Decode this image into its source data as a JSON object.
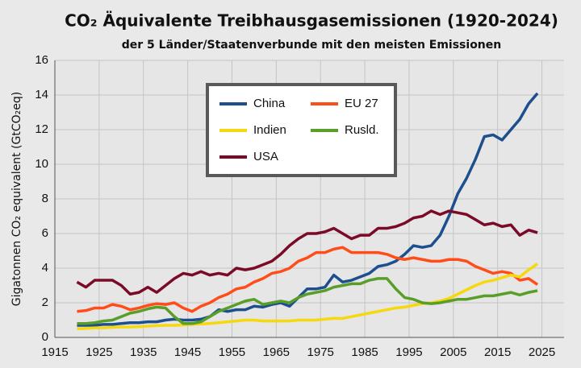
{
  "chart_data": {
    "type": "line",
    "title": "CO₂ Äquivalente Treibhausgasemissionen (1920-2024)",
    "subtitle": "der 5 Länder/Staatenverbunde mit den meisten Emissionen",
    "y_label": "Gigatonnen  CO₂ equivalent (GtCO₂eq)",
    "x": [
      1920,
      1922,
      1924,
      1926,
      1928,
      1930,
      1932,
      1934,
      1936,
      1938,
      1940,
      1942,
      1944,
      1946,
      1948,
      1950,
      1952,
      1954,
      1956,
      1958,
      1960,
      1962,
      1964,
      1966,
      1968,
      1970,
      1972,
      1974,
      1976,
      1978,
      1980,
      1982,
      1984,
      1986,
      1988,
      1990,
      1992,
      1994,
      1996,
      1998,
      2000,
      2002,
      2004,
      2006,
      2008,
      2010,
      2012,
      2014,
      2016,
      2018,
      2020,
      2022,
      2024
    ],
    "series": [
      {
        "name": "China",
        "color": "#1d4f8f",
        "values": [
          0.7,
          0.7,
          0.7,
          0.75,
          0.75,
          0.8,
          0.85,
          0.85,
          0.9,
          0.9,
          1.0,
          1.05,
          1.0,
          1.0,
          1.05,
          1.2,
          1.6,
          1.5,
          1.6,
          1.6,
          1.8,
          1.75,
          1.9,
          2.0,
          1.8,
          2.3,
          2.8,
          2.8,
          2.9,
          3.6,
          3.2,
          3.3,
          3.5,
          3.7,
          4.1,
          4.2,
          4.4,
          4.8,
          5.3,
          5.2,
          5.3,
          5.9,
          7.0,
          8.3,
          9.2,
          10.3,
          11.6,
          11.7,
          11.4,
          12.0,
          12.6,
          13.5,
          14.1
        ]
      },
      {
        "name": "EU 27",
        "color": "#ff4d1a",
        "values": [
          1.5,
          1.55,
          1.7,
          1.7,
          1.9,
          1.8,
          1.6,
          1.7,
          1.85,
          1.95,
          1.9,
          2.0,
          1.7,
          1.5,
          1.8,
          2.0,
          2.3,
          2.5,
          2.8,
          2.9,
          3.2,
          3.4,
          3.7,
          3.8,
          4.0,
          4.4,
          4.6,
          4.9,
          4.9,
          5.1,
          5.2,
          4.9,
          4.9,
          4.9,
          4.9,
          4.8,
          4.6,
          4.5,
          4.6,
          4.5,
          4.4,
          4.4,
          4.5,
          4.5,
          4.4,
          4.1,
          3.9,
          3.7,
          3.8,
          3.7,
          3.3,
          3.4,
          3.05
        ]
      },
      {
        "name": "Indien",
        "color": "#f5d80f",
        "values": [
          0.5,
          0.52,
          0.55,
          0.55,
          0.58,
          0.6,
          0.6,
          0.62,
          0.65,
          0.68,
          0.7,
          0.7,
          0.72,
          0.75,
          0.78,
          0.8,
          0.85,
          0.9,
          0.95,
          1.0,
          1.0,
          0.95,
          0.95,
          0.95,
          0.95,
          1.0,
          1.0,
          1.0,
          1.05,
          1.1,
          1.1,
          1.2,
          1.3,
          1.4,
          1.5,
          1.6,
          1.7,
          1.75,
          1.85,
          1.95,
          2.0,
          2.1,
          2.25,
          2.5,
          2.75,
          3.0,
          3.2,
          3.3,
          3.45,
          3.6,
          3.5,
          3.9,
          4.25
        ]
      },
      {
        "name": "Rusld.",
        "color": "#5a9e2a",
        "values": [
          0.8,
          0.8,
          0.85,
          0.95,
          1.0,
          1.2,
          1.4,
          1.5,
          1.65,
          1.75,
          1.7,
          1.2,
          0.8,
          0.8,
          0.9,
          1.2,
          1.5,
          1.7,
          1.9,
          2.1,
          2.2,
          1.9,
          2.0,
          2.1,
          2.0,
          2.3,
          2.5,
          2.6,
          2.7,
          2.9,
          3.0,
          3.1,
          3.1,
          3.3,
          3.4,
          3.4,
          2.8,
          2.3,
          2.2,
          2.0,
          1.95,
          2.0,
          2.1,
          2.2,
          2.2,
          2.3,
          2.4,
          2.4,
          2.5,
          2.6,
          2.45,
          2.6,
          2.7
        ]
      },
      {
        "name": "USA",
        "color": "#7a0a28",
        "values": [
          3.2,
          2.9,
          3.3,
          3.3,
          3.3,
          3.0,
          2.5,
          2.6,
          2.9,
          2.6,
          3.0,
          3.4,
          3.7,
          3.6,
          3.8,
          3.6,
          3.7,
          3.6,
          4.0,
          3.9,
          4.0,
          4.2,
          4.4,
          4.8,
          5.3,
          5.7,
          6.0,
          6.0,
          6.1,
          6.3,
          6.0,
          5.7,
          5.9,
          5.9,
          6.3,
          6.3,
          6.4,
          6.6,
          6.9,
          7.0,
          7.3,
          7.1,
          7.3,
          7.2,
          7.1,
          6.8,
          6.5,
          6.6,
          6.4,
          6.5,
          5.9,
          6.2,
          6.05
        ]
      }
    ],
    "xlim": [
      1915,
      2030
    ],
    "xticks": [
      1915,
      1925,
      1935,
      1945,
      1955,
      1965,
      1975,
      1985,
      1995,
      2005,
      2015,
      2025
    ],
    "ylim": [
      0,
      16
    ],
    "yticks": [
      0,
      2,
      4,
      6,
      8,
      10,
      12,
      14,
      16
    ],
    "grid": true
  }
}
